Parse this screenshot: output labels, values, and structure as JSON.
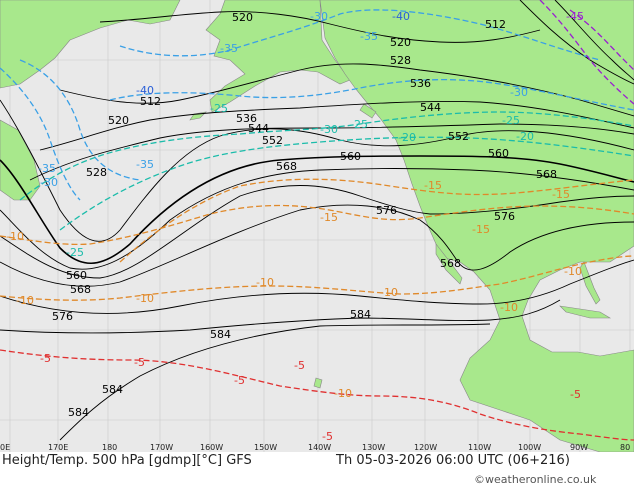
{
  "footer": {
    "title": "Height/Temp. 500 hPa [gdmp][°C] GFS",
    "date": "Th 05-03-2026 06:00 UTC (06+216)",
    "site": "©weatheronline.co.uk"
  },
  "axis": {
    "lon_labels": [
      "0E",
      "170E",
      "180",
      "170W",
      "160W",
      "150W",
      "140W",
      "130W",
      "120W",
      "110W",
      "100W",
      "90W",
      "80"
    ]
  },
  "colors": {
    "ocean": "#e9e9e9",
    "land": "#a8e88c",
    "height_contour": "#000000",
    "temp_cold": "#3aa0e6",
    "temp_mid": "#1bbcaa",
    "temp_warm": "#e0892a",
    "temp_red": "#e03030",
    "temp_violet": "#9a1fd0"
  },
  "height_labels": [
    "520",
    "512",
    "520",
    "528",
    "536",
    "544",
    "552",
    "560",
    "568",
    "576",
    "584",
    "584",
    "584",
    "584",
    "560",
    "568",
    "576",
    "520",
    "528",
    "536",
    "544",
    "552",
    "560",
    "568",
    "576",
    "568",
    "512"
  ],
  "temp_labels": [
    "-40",
    "-35",
    "-40",
    "-30",
    "-35",
    "-25",
    "-35",
    "-30",
    "-25",
    "-35",
    "-30",
    "-20",
    "-25",
    "-15",
    "-15",
    "-10",
    "-15",
    "-10",
    "-10",
    "-10",
    "-10",
    "-5",
    "-5",
    "-5",
    "-5",
    "-10",
    "-5",
    "-5",
    "-45",
    "-30",
    "-25",
    "-20",
    "-15",
    "-10",
    "-10"
  ]
}
